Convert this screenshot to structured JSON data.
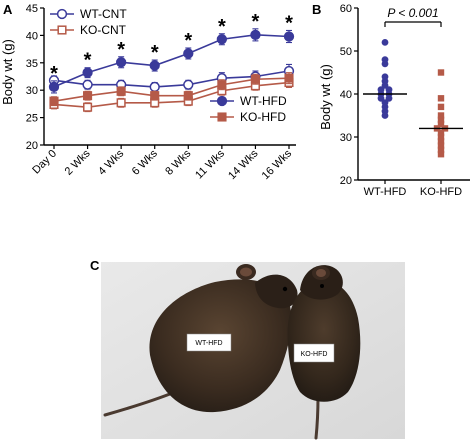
{
  "chart_data": [
    {
      "panel": "A",
      "type": "line",
      "ylabel": "Body wt (g)",
      "ylim": [
        20,
        45
      ],
      "yticks": [
        20,
        25,
        30,
        35,
        40,
        45
      ],
      "categories": [
        "Day 0",
        "2 Wks",
        "4 Wks",
        "6 Wks",
        "8 Wks",
        "11 Wks",
        "14 Wks",
        "16 Wks"
      ],
      "significance_marker": "*",
      "significant_at": [
        "Day 0",
        "2 Wks",
        "4 Wks",
        "6 Wks",
        "8 Wks",
        "11 Wks",
        "14 Wks",
        "16 Wks"
      ],
      "legend_placement": [
        "top-left",
        "bottom-right"
      ],
      "series": [
        {
          "name": "WT-CNT",
          "color": "#3a3a9a",
          "marker": "open-circle",
          "values": [
            31.8,
            31.0,
            31.0,
            30.6,
            31.0,
            32.2,
            32.5,
            33.5
          ],
          "errors": [
            0.8,
            0.8,
            0.8,
            0.8,
            0.8,
            1.0,
            1.0,
            1.2
          ]
        },
        {
          "name": "KO-CNT",
          "color": "#b55a48",
          "marker": "open-square",
          "values": [
            27.4,
            26.9,
            27.7,
            27.7,
            28.0,
            29.9,
            30.8,
            31.4
          ],
          "errors": [
            0.8,
            0.8,
            0.8,
            0.8,
            0.8,
            0.8,
            0.8,
            0.9
          ]
        },
        {
          "name": "WT-HFD",
          "color": "#3a3a9a",
          "marker": "filled-circle",
          "values": [
            30.6,
            33.2,
            35.1,
            34.5,
            36.7,
            39.3,
            40.1,
            39.8
          ],
          "errors": [
            1.1,
            0.9,
            1.0,
            1.0,
            1.0,
            1.0,
            1.1,
            1.1
          ]
        },
        {
          "name": "KO-HFD",
          "color": "#b55a48",
          "marker": "filled-square",
          "values": [
            28.0,
            29.0,
            29.8,
            29.0,
            29.0,
            31.0,
            32.0,
            32.2
          ],
          "errors": [
            0.8,
            0.8,
            0.8,
            0.8,
            0.8,
            0.9,
            0.9,
            1.0
          ]
        }
      ]
    },
    {
      "panel": "B",
      "type": "scatter",
      "ylabel": "Body wt (g)",
      "ylim": [
        20,
        60
      ],
      "yticks": [
        20,
        30,
        40,
        50,
        60
      ],
      "categories": [
        "WT-HFD",
        "KO-HFD"
      ],
      "annotation": "P < 0.001",
      "series": [
        {
          "name": "WT-HFD",
          "color": "#3a3a9a",
          "median": 40,
          "values": [
            52,
            48,
            47,
            44,
            43,
            42,
            41,
            41,
            40,
            40,
            39,
            39,
            38,
            37,
            36,
            35
          ]
        },
        {
          "name": "KO-HFD",
          "color": "#b55a48",
          "median": 32,
          "values": [
            45,
            39,
            37,
            35,
            34,
            33,
            32,
            32,
            31,
            30,
            29,
            28,
            27,
            26
          ]
        }
      ]
    }
  ],
  "photo": {
    "panel": "C",
    "labels": [
      "WT-HFD",
      "KO-HFD"
    ]
  }
}
